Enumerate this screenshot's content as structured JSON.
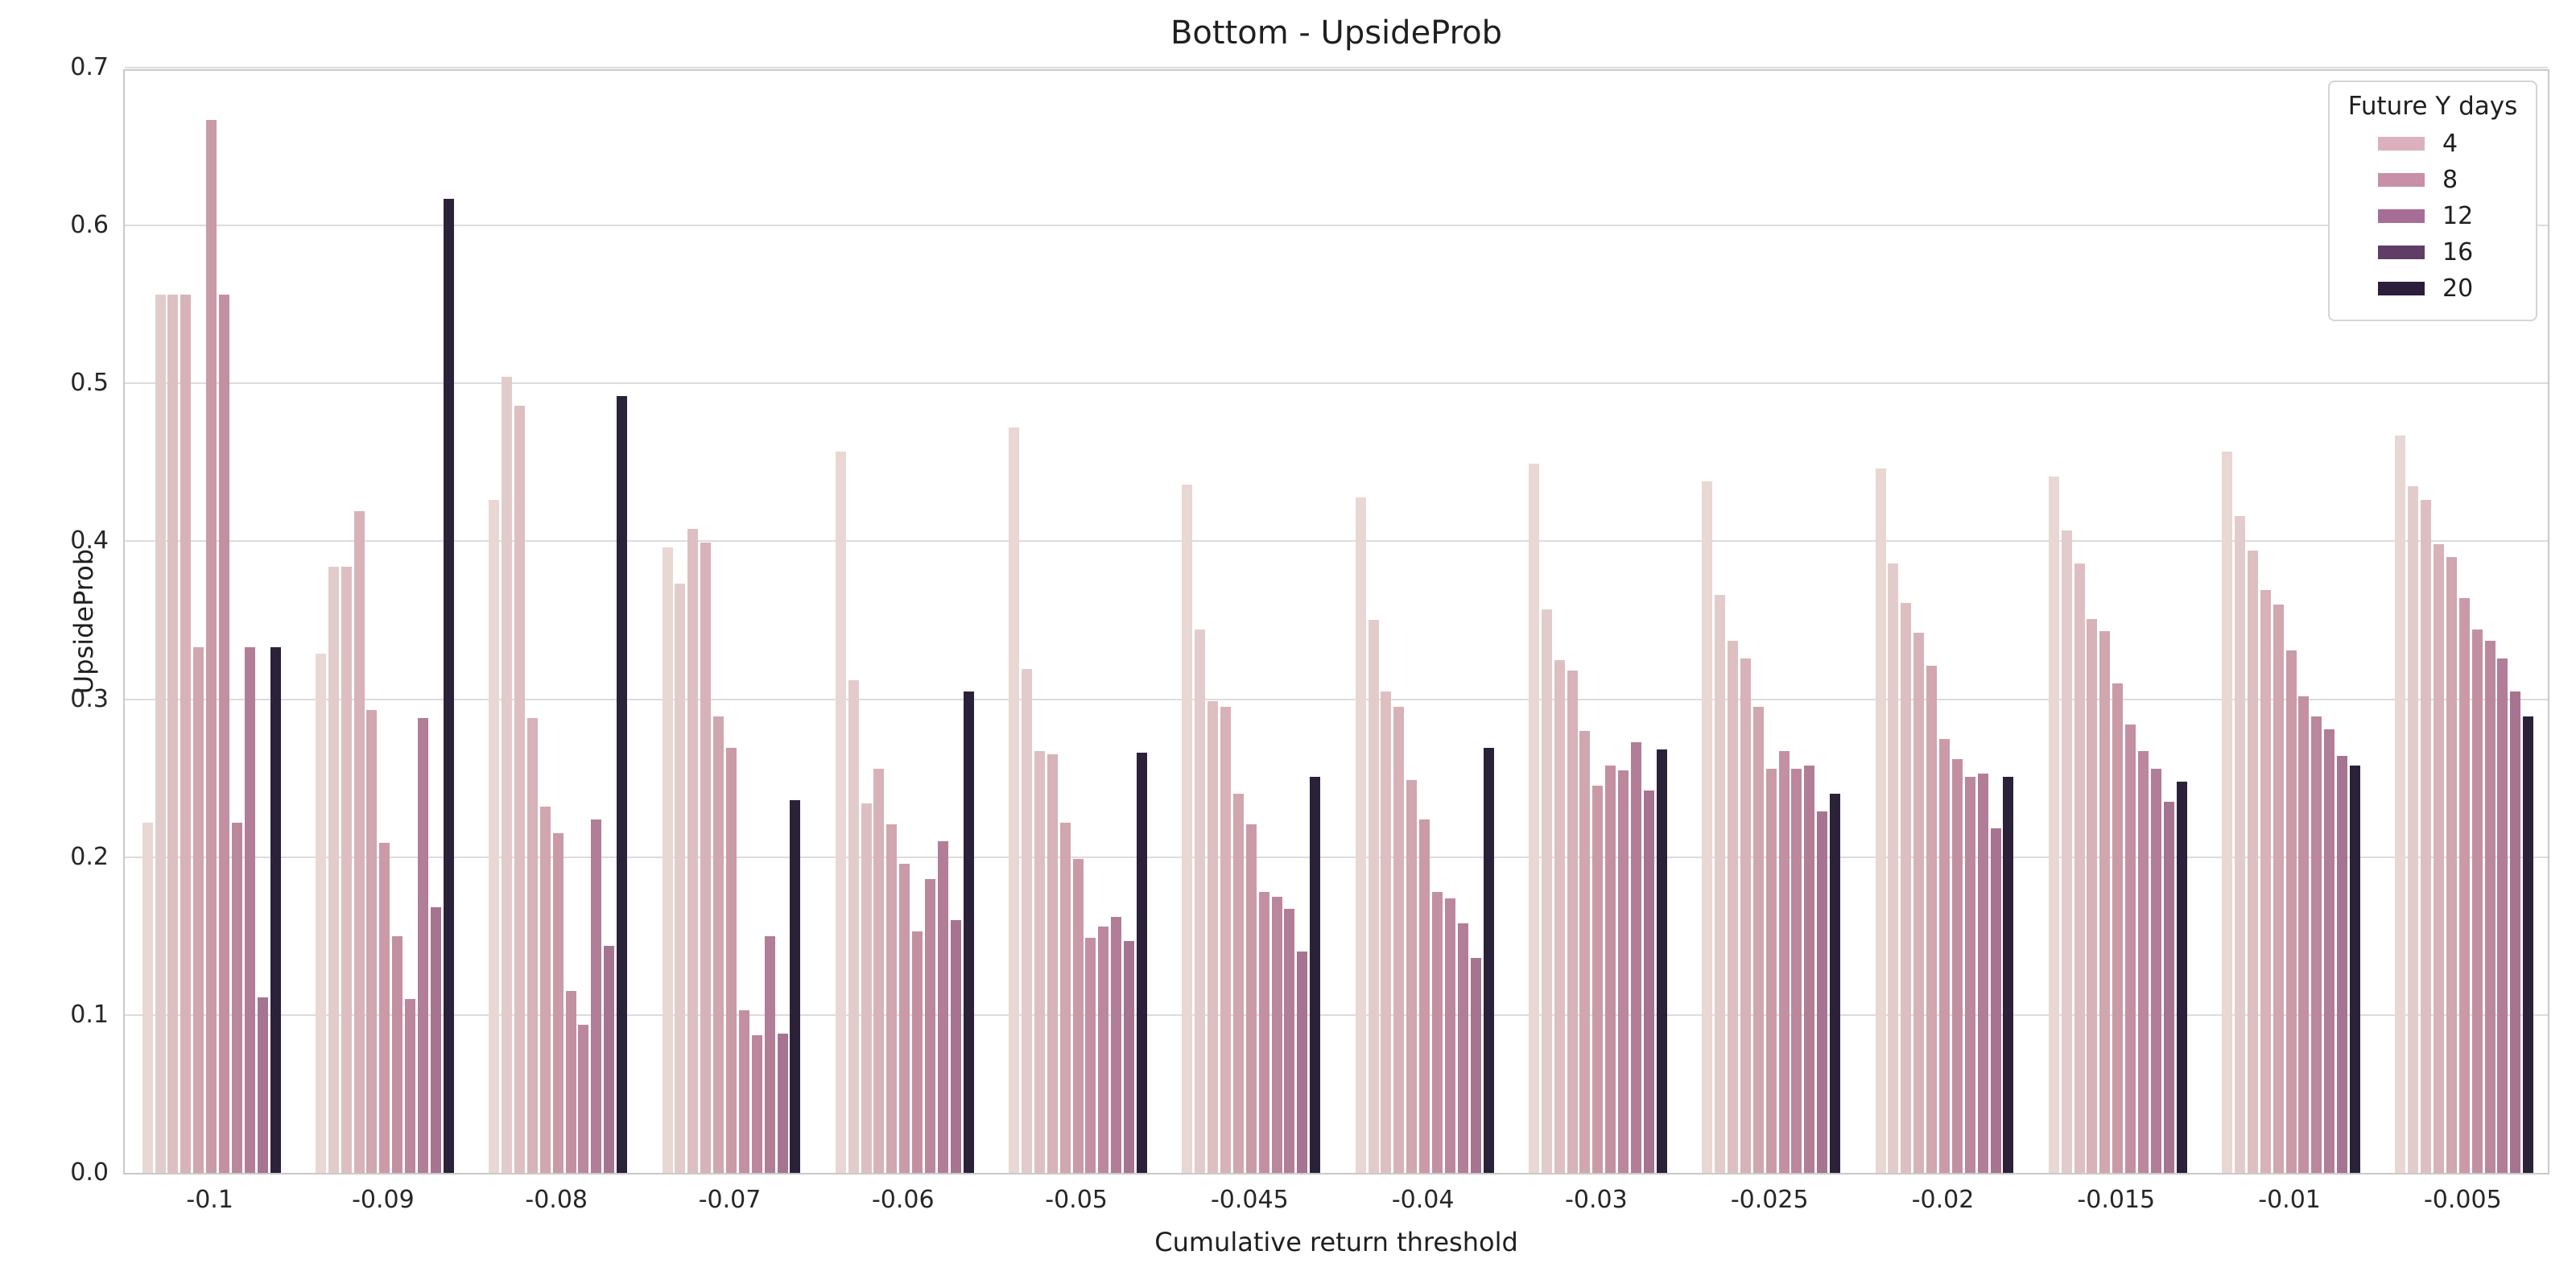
{
  "title": "Bottom - UpsideProb",
  "axes": {
    "x_label": "Cumulative return threshold",
    "y_label": "UpsideProb",
    "y_ticks": [
      "0.0",
      "0.1",
      "0.2",
      "0.3",
      "0.4",
      "0.5",
      "0.6",
      "0.7"
    ],
    "x_ticks": [
      "-0.1",
      "-0.09",
      "-0.08",
      "-0.07",
      "-0.06",
      "-0.05",
      "-0.045",
      "-0.04",
      "-0.03",
      "-0.025",
      "-0.02",
      "-0.015",
      "-0.01",
      "-0.005"
    ]
  },
  "legend": {
    "title": "Future Y days",
    "entries": [
      {
        "label": "4",
        "color": "#dcb1bd"
      },
      {
        "label": "8",
        "color": "#c98ea8"
      },
      {
        "label": "12",
        "color": "#a76d96"
      },
      {
        "label": "16",
        "color": "#5e3d66"
      },
      {
        "label": "20",
        "color": "#2a1e3a"
      }
    ]
  },
  "style": {
    "grid_color": "#dcdcdc",
    "spine_color": "#c9c9c9",
    "background": "#ffffff",
    "text_color": "#262626"
  },
  "chart_data": {
    "type": "bar",
    "title": "Bottom - UpsideProb",
    "xlabel": "Cumulative return threshold",
    "ylabel": "UpsideProb",
    "ylim": [
      0,
      0.7
    ],
    "grid": true,
    "legend_position": "upper right",
    "legend_title": "Future Y days",
    "legend_labels": [
      "4",
      "8",
      "12",
      "16",
      "20"
    ],
    "categories": [
      "-0.1",
      "-0.09",
      "-0.08",
      "-0.07",
      "-0.06",
      "-0.05",
      "-0.045",
      "-0.04",
      "-0.03",
      "-0.025",
      "-0.02",
      "-0.015",
      "-0.01",
      "-0.005"
    ],
    "series": [
      {
        "name": "hue-01",
        "color": "#e8d7d2",
        "values": [
          0.222,
          0.329,
          0.426,
          0.396,
          0.457,
          0.472,
          0.436,
          0.428,
          0.449,
          0.438,
          0.446,
          0.441,
          0.457,
          0.467
        ]
      },
      {
        "name": "hue-02",
        "color": "#e2cccb",
        "values": [
          0.556,
          0.384,
          0.504,
          0.373,
          0.312,
          0.319,
          0.344,
          0.35,
          0.357,
          0.366,
          0.386,
          0.407,
          0.416,
          0.435
        ]
      },
      {
        "name": "hue-03",
        "color": "#debfc1",
        "values": [
          0.556,
          0.384,
          0.486,
          0.408,
          0.234,
          0.267,
          0.299,
          0.305,
          0.325,
          0.337,
          0.361,
          0.386,
          0.394,
          0.426
        ]
      },
      {
        "name": "hue-04",
        "color": "#d7b2b8",
        "values": [
          0.556,
          0.419,
          0.288,
          0.399,
          0.256,
          0.265,
          0.295,
          0.295,
          0.318,
          0.326,
          0.342,
          0.351,
          0.369,
          0.398
        ]
      },
      {
        "name": "hue-05",
        "color": "#d0a6af",
        "values": [
          0.333,
          0.293,
          0.232,
          0.289,
          0.221,
          0.222,
          0.24,
          0.249,
          0.28,
          0.295,
          0.321,
          0.343,
          0.36,
          0.39
        ]
      },
      {
        "name": "hue-06",
        "color": "#ca9aa7",
        "values": [
          0.667,
          0.209,
          0.215,
          0.269,
          0.196,
          0.199,
          0.221,
          0.224,
          0.245,
          0.256,
          0.275,
          0.31,
          0.331,
          0.364
        ]
      },
      {
        "name": "hue-07",
        "color": "#c390a1",
        "values": [
          0.556,
          0.15,
          0.115,
          0.103,
          0.153,
          0.149,
          0.178,
          0.178,
          0.258,
          0.267,
          0.262,
          0.284,
          0.302,
          0.344
        ]
      },
      {
        "name": "hue-08",
        "color": "#bb879c",
        "values": [
          0.222,
          0.11,
          0.094,
          0.087,
          0.186,
          0.156,
          0.175,
          0.174,
          0.255,
          0.256,
          0.251,
          0.267,
          0.289,
          0.337
        ]
      },
      {
        "name": "hue-09",
        "color": "#b17d97",
        "values": [
          0.333,
          0.288,
          0.224,
          0.15,
          0.21,
          0.162,
          0.167,
          0.158,
          0.273,
          0.258,
          0.253,
          0.256,
          0.281,
          0.326
        ]
      },
      {
        "name": "hue-10",
        "color": "#a67390",
        "values": [
          0.111,
          0.168,
          0.144,
          0.088,
          0.16,
          0.147,
          0.14,
          0.136,
          0.242,
          0.229,
          0.218,
          0.235,
          0.264,
          0.305
        ]
      },
      {
        "name": "hue-11",
        "color": "#2b2138",
        "values": [
          0.333,
          0.617,
          0.492,
          0.236,
          0.305,
          0.266,
          0.251,
          0.269,
          0.268,
          0.24,
          0.251,
          0.248,
          0.258,
          0.289
        ]
      }
    ]
  }
}
